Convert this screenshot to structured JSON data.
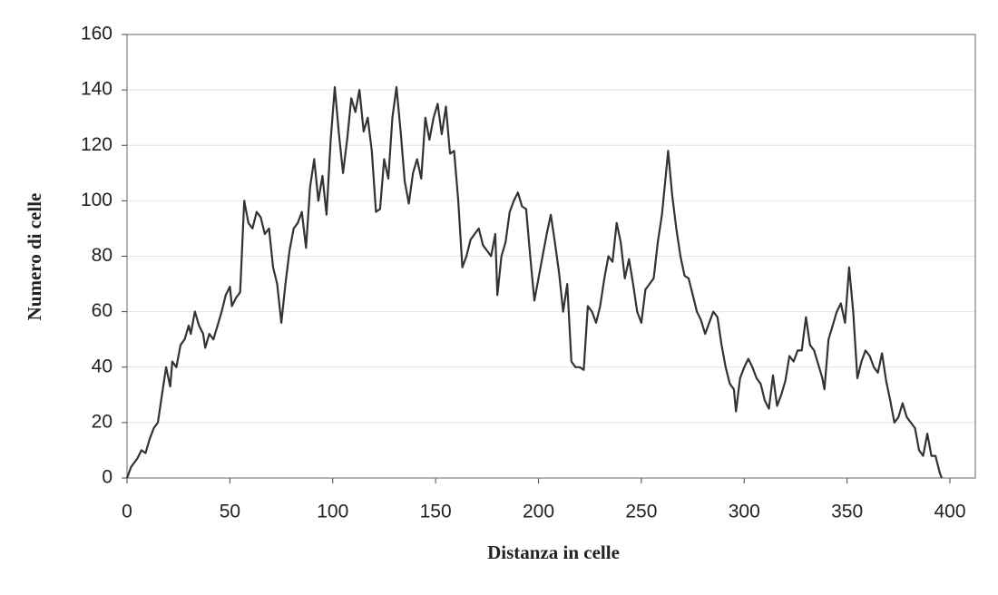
{
  "chart_data": {
    "type": "line",
    "x_label": "Distanza in celle",
    "y_label": "Numero di celle",
    "x": [
      0,
      2,
      5,
      7,
      9,
      11,
      13,
      15,
      17,
      19,
      21,
      22,
      24,
      26,
      28,
      30,
      31,
      33,
      35,
      37,
      38,
      40,
      42,
      44,
      46,
      48,
      50,
      51,
      53,
      55,
      57,
      59,
      61,
      63,
      65,
      67,
      69,
      71,
      73,
      75,
      77,
      79,
      81,
      83,
      85,
      87,
      89,
      91,
      93,
      95,
      97,
      99,
      101,
      103,
      105,
      107,
      109,
      111,
      113,
      115,
      117,
      119,
      121,
      123,
      125,
      127,
      129,
      131,
      133,
      135,
      137,
      139,
      141,
      143,
      145,
      147,
      149,
      151,
      153,
      155,
      157,
      159,
      161,
      163,
      165,
      167,
      169,
      171,
      173,
      175,
      177,
      179,
      180,
      182,
      184,
      186,
      188,
      190,
      192,
      194,
      196,
      198,
      200,
      202,
      204,
      206,
      208,
      210,
      212,
      214,
      216,
      218,
      220,
      222,
      224,
      226,
      228,
      230,
      232,
      234,
      236,
      238,
      240,
      242,
      244,
      246,
      248,
      250,
      252,
      254,
      256,
      258,
      260,
      262,
      263,
      265,
      267,
      269,
      271,
      273,
      275,
      277,
      279,
      281,
      283,
      285,
      287,
      289,
      291,
      293,
      295,
      296,
      298,
      300,
      302,
      304,
      306,
      308,
      310,
      312,
      314,
      316,
      318,
      320,
      322,
      324,
      326,
      328,
      330,
      332,
      334,
      336,
      338,
      339,
      341,
      343,
      345,
      347,
      349,
      351,
      353,
      355,
      357,
      359,
      361,
      363,
      365,
      367,
      369,
      371,
      373,
      375,
      377,
      379,
      381,
      383,
      385,
      387,
      389,
      391,
      393,
      395,
      396
    ],
    "values": [
      0,
      4,
      7,
      10,
      9,
      14,
      18,
      20,
      30,
      40,
      33,
      42,
      40,
      48,
      50,
      55,
      52,
      60,
      55,
      52,
      47,
      52,
      50,
      55,
      60,
      66,
      69,
      62,
      65,
      67,
      100,
      92,
      90,
      96,
      94,
      88,
      90,
      76,
      70,
      56,
      70,
      82,
      90,
      92,
      96,
      83,
      105,
      115,
      100,
      109,
      95,
      122,
      141,
      124,
      110,
      122,
      137,
      132,
      140,
      125,
      130,
      118,
      96,
      97,
      115,
      108,
      130,
      141,
      125,
      107,
      99,
      110,
      115,
      108,
      130,
      122,
      130,
      135,
      124,
      134,
      117,
      118,
      100,
      76,
      80,
      86,
      88,
      90,
      84,
      82,
      80,
      88,
      66,
      80,
      85,
      96,
      100,
      103,
      98,
      97,
      80,
      64,
      72,
      80,
      88,
      95,
      85,
      74,
      60,
      70,
      42,
      40,
      40,
      39,
      62,
      60,
      56,
      62,
      72,
      80,
      78,
      92,
      85,
      72,
      79,
      70,
      60,
      56,
      68,
      70,
      72,
      85,
      95,
      110,
      118,
      102,
      90,
      80,
      73,
      72,
      66,
      60,
      57,
      52,
      56,
      60,
      58,
      48,
      40,
      34,
      32,
      24,
      36,
      40,
      43,
      40,
      36,
      34,
      28,
      25,
      37,
      26,
      30,
      35,
      44,
      42,
      46,
      46,
      58,
      48,
      46,
      41,
      36,
      32,
      50,
      55,
      60,
      63,
      56,
      76,
      60,
      36,
      42,
      46,
      44,
      40,
      38,
      45,
      35,
      28,
      20,
      22,
      27,
      22,
      20,
      18,
      10,
      8,
      16,
      8,
      8,
      2,
      0
    ],
    "color": "#333333",
    "xlim": [
      0,
      400
    ],
    "xticks": [
      0,
      50,
      100,
      150,
      200,
      250,
      300,
      350,
      400
    ],
    "ylim": [
      0,
      160
    ],
    "yticks": [
      0,
      20,
      40,
      60,
      80,
      100,
      120,
      140,
      160
    ],
    "grid": true
  }
}
